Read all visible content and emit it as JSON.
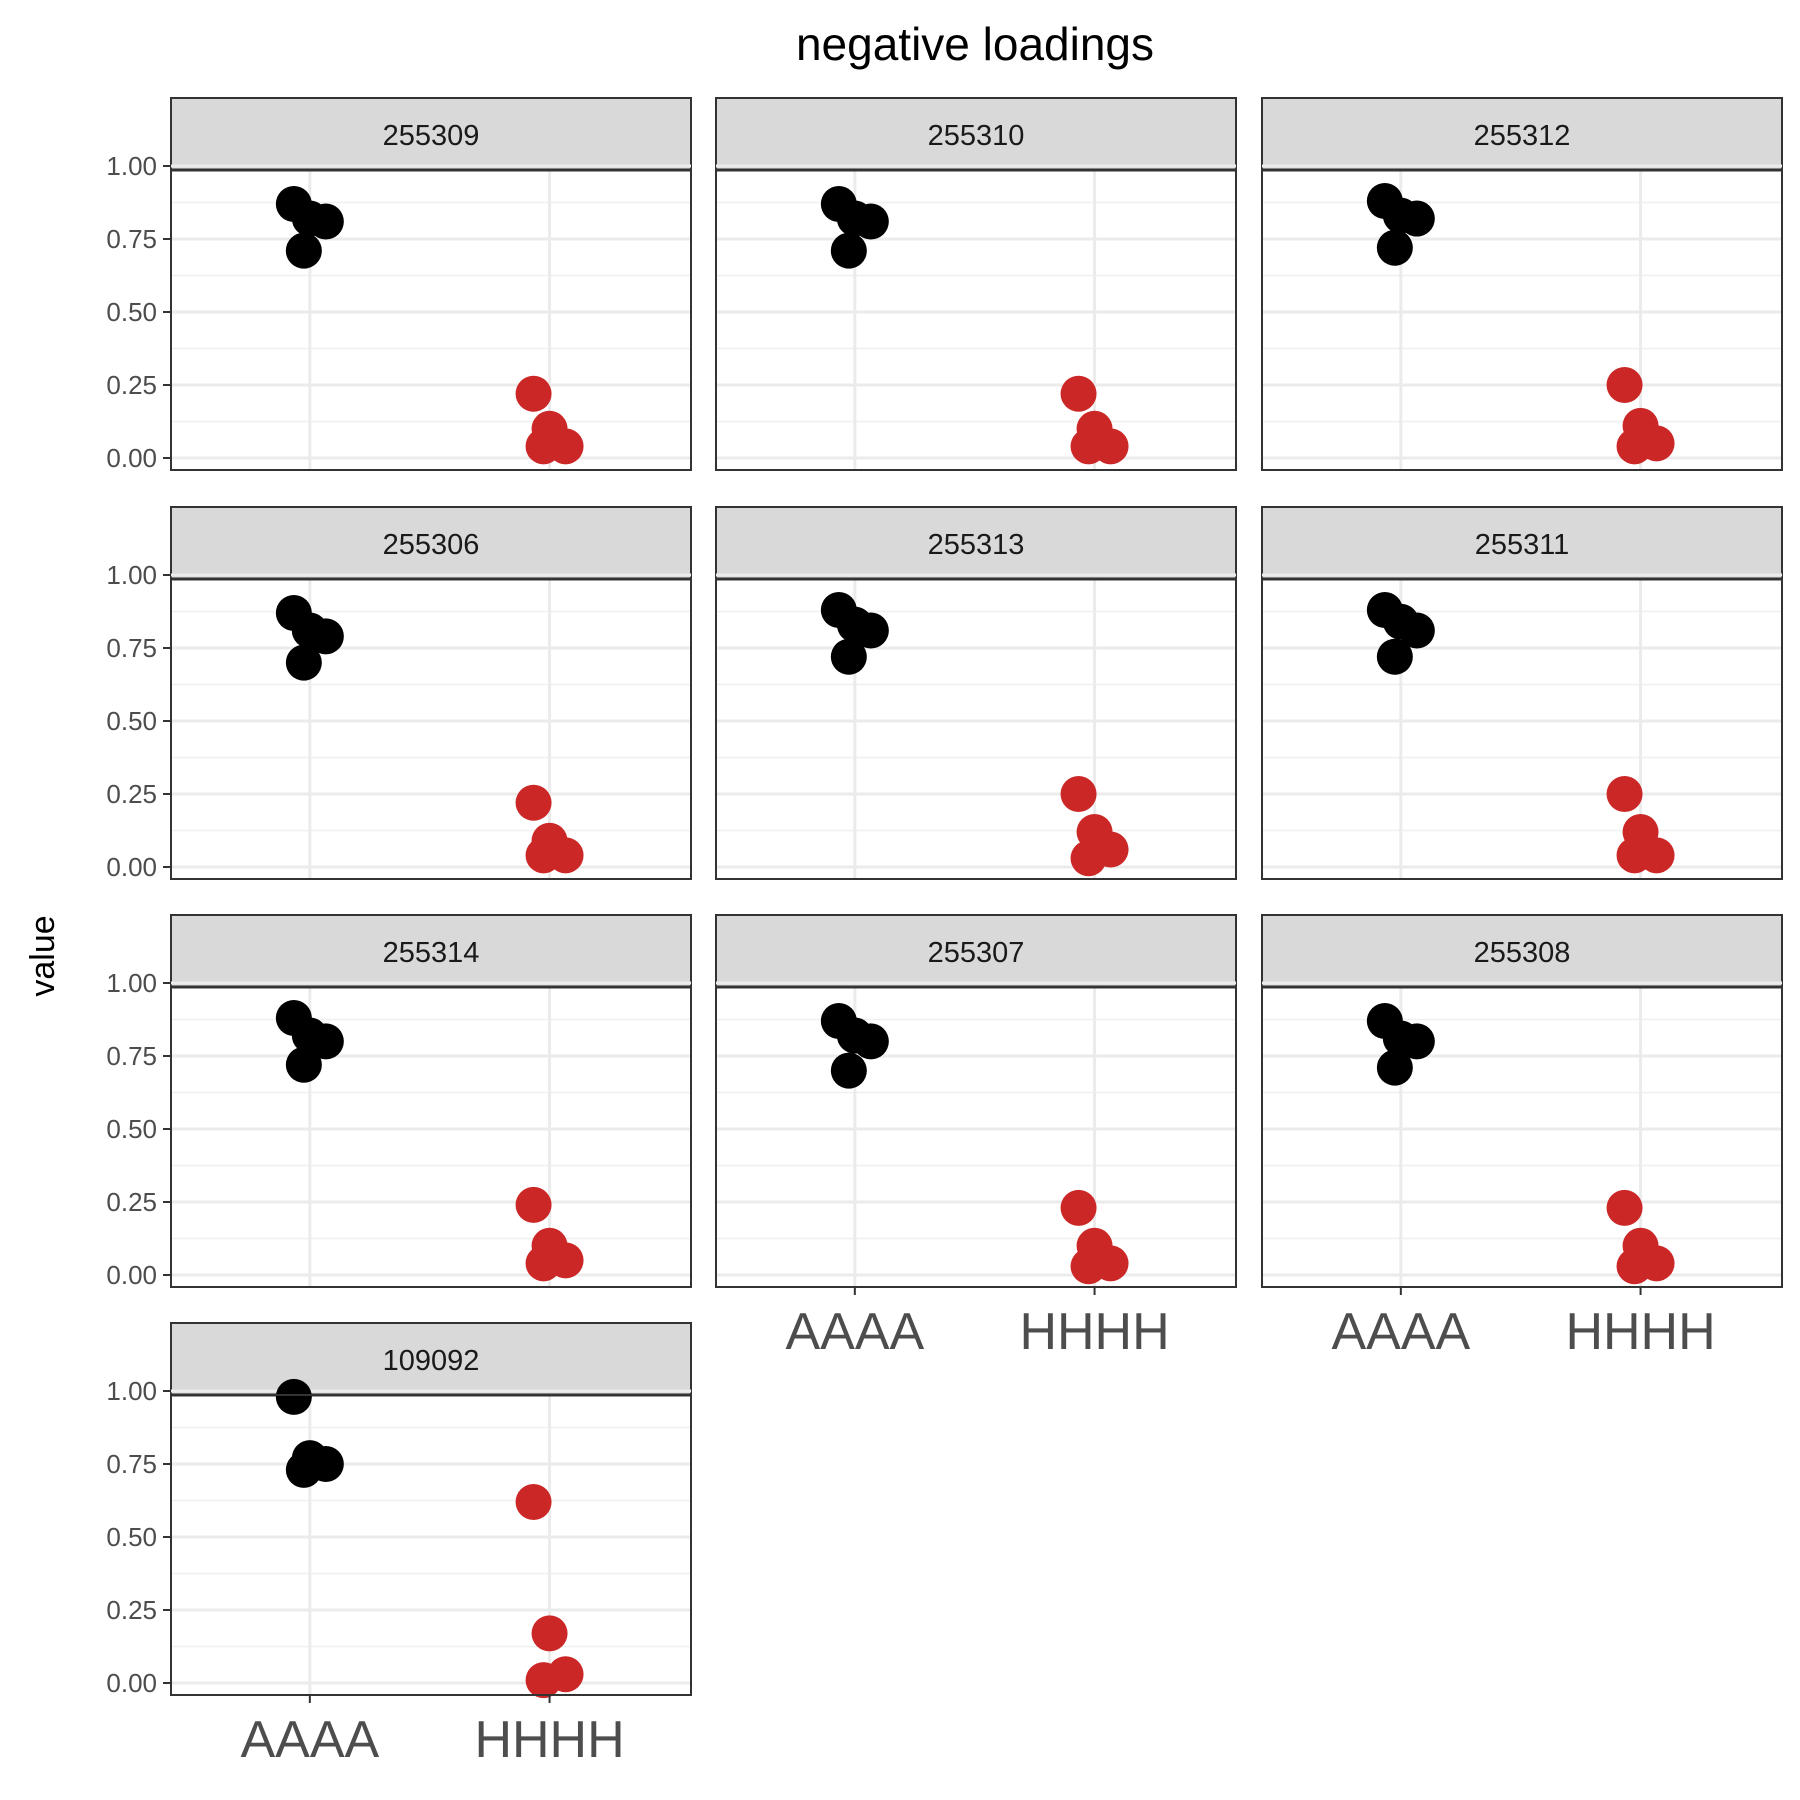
{
  "chart_data": {
    "type": "scatter",
    "title": "negative loadings",
    "ylabel": "value",
    "xlabel": "",
    "categories": [
      "AAAA",
      "HHHH"
    ],
    "ylim": [
      0,
      1
    ],
    "yticks": [
      "0.00",
      "0.25",
      "0.50",
      "0.75",
      "1.00"
    ],
    "grid": true,
    "colors": {
      "AAAA": "#000000",
      "HHHH": "#cc2727"
    },
    "panels": [
      {
        "label": "255309",
        "points": [
          {
            "x": "AAAA",
            "y": 0.87
          },
          {
            "x": "AAAA",
            "y": 0.82
          },
          {
            "x": "AAAA",
            "y": 0.81
          },
          {
            "x": "AAAA",
            "y": 0.71
          },
          {
            "x": "HHHH",
            "y": 0.22
          },
          {
            "x": "HHHH",
            "y": 0.1
          },
          {
            "x": "HHHH",
            "y": 0.04
          },
          {
            "x": "HHHH",
            "y": 0.04
          }
        ]
      },
      {
        "label": "255310",
        "points": [
          {
            "x": "AAAA",
            "y": 0.87
          },
          {
            "x": "AAAA",
            "y": 0.82
          },
          {
            "x": "AAAA",
            "y": 0.81
          },
          {
            "x": "AAAA",
            "y": 0.71
          },
          {
            "x": "HHHH",
            "y": 0.22
          },
          {
            "x": "HHHH",
            "y": 0.1
          },
          {
            "x": "HHHH",
            "y": 0.04
          },
          {
            "x": "HHHH",
            "y": 0.04
          }
        ]
      },
      {
        "label": "255312",
        "points": [
          {
            "x": "AAAA",
            "y": 0.88
          },
          {
            "x": "AAAA",
            "y": 0.83
          },
          {
            "x": "AAAA",
            "y": 0.82
          },
          {
            "x": "AAAA",
            "y": 0.72
          },
          {
            "x": "HHHH",
            "y": 0.25
          },
          {
            "x": "HHHH",
            "y": 0.11
          },
          {
            "x": "HHHH",
            "y": 0.05
          },
          {
            "x": "HHHH",
            "y": 0.04
          }
        ]
      },
      {
        "label": "255306",
        "points": [
          {
            "x": "AAAA",
            "y": 0.87
          },
          {
            "x": "AAAA",
            "y": 0.81
          },
          {
            "x": "AAAA",
            "y": 0.79
          },
          {
            "x": "AAAA",
            "y": 0.7
          },
          {
            "x": "HHHH",
            "y": 0.22
          },
          {
            "x": "HHHH",
            "y": 0.09
          },
          {
            "x": "HHHH",
            "y": 0.04
          },
          {
            "x": "HHHH",
            "y": 0.04
          }
        ]
      },
      {
        "label": "255313",
        "points": [
          {
            "x": "AAAA",
            "y": 0.88
          },
          {
            "x": "AAAA",
            "y": 0.83
          },
          {
            "x": "AAAA",
            "y": 0.81
          },
          {
            "x": "AAAA",
            "y": 0.72
          },
          {
            "x": "HHHH",
            "y": 0.25
          },
          {
            "x": "HHHH",
            "y": 0.12
          },
          {
            "x": "HHHH",
            "y": 0.06
          },
          {
            "x": "HHHH",
            "y": 0.03
          }
        ]
      },
      {
        "label": "255311",
        "points": [
          {
            "x": "AAAA",
            "y": 0.88
          },
          {
            "x": "AAAA",
            "y": 0.84
          },
          {
            "x": "AAAA",
            "y": 0.81
          },
          {
            "x": "AAAA",
            "y": 0.72
          },
          {
            "x": "HHHH",
            "y": 0.25
          },
          {
            "x": "HHHH",
            "y": 0.12
          },
          {
            "x": "HHHH",
            "y": 0.04
          },
          {
            "x": "HHHH",
            "y": 0.04
          }
        ]
      },
      {
        "label": "255314",
        "points": [
          {
            "x": "AAAA",
            "y": 0.88
          },
          {
            "x": "AAAA",
            "y": 0.82
          },
          {
            "x": "AAAA",
            "y": 0.8
          },
          {
            "x": "AAAA",
            "y": 0.72
          },
          {
            "x": "HHHH",
            "y": 0.24
          },
          {
            "x": "HHHH",
            "y": 0.1
          },
          {
            "x": "HHHH",
            "y": 0.05
          },
          {
            "x": "HHHH",
            "y": 0.04
          }
        ]
      },
      {
        "label": "255307",
        "points": [
          {
            "x": "AAAA",
            "y": 0.87
          },
          {
            "x": "AAAA",
            "y": 0.82
          },
          {
            "x": "AAAA",
            "y": 0.8
          },
          {
            "x": "AAAA",
            "y": 0.7
          },
          {
            "x": "HHHH",
            "y": 0.23
          },
          {
            "x": "HHHH",
            "y": 0.1
          },
          {
            "x": "HHHH",
            "y": 0.04
          },
          {
            "x": "HHHH",
            "y": 0.03
          }
        ]
      },
      {
        "label": "255308",
        "points": [
          {
            "x": "AAAA",
            "y": 0.87
          },
          {
            "x": "AAAA",
            "y": 0.81
          },
          {
            "x": "AAAA",
            "y": 0.8
          },
          {
            "x": "AAAA",
            "y": 0.71
          },
          {
            "x": "HHHH",
            "y": 0.23
          },
          {
            "x": "HHHH",
            "y": 0.1
          },
          {
            "x": "HHHH",
            "y": 0.04
          },
          {
            "x": "HHHH",
            "y": 0.03
          }
        ]
      },
      {
        "label": "109092",
        "points": [
          {
            "x": "AAAA",
            "y": 0.98
          },
          {
            "x": "AAAA",
            "y": 0.77
          },
          {
            "x": "AAAA",
            "y": 0.75
          },
          {
            "x": "AAAA",
            "y": 0.73
          },
          {
            "x": "HHHH",
            "y": 0.62
          },
          {
            "x": "HHHH",
            "y": 0.17
          },
          {
            "x": "HHHH",
            "y": 0.03
          },
          {
            "x": "HHHH",
            "y": 0.01
          }
        ]
      }
    ]
  }
}
